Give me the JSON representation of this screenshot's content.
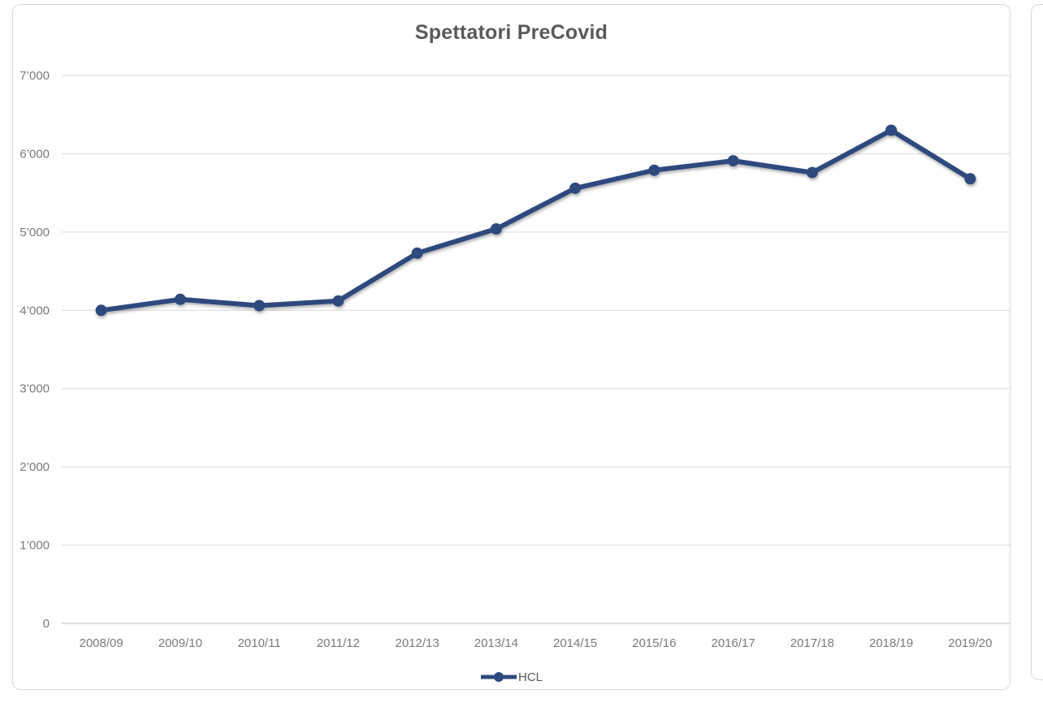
{
  "chart_data": {
    "type": "line",
    "title": "Spettatori PreCovid",
    "categories": [
      "2008/09",
      "2009/10",
      "2010/11",
      "2011/12",
      "2012/13",
      "2013/14",
      "2014/15",
      "2015/16",
      "2016/17",
      "2017/18",
      "2018/19",
      "2019/20"
    ],
    "series": [
      {
        "name": "HCL",
        "color": "#2F4A7D",
        "values": [
          4000,
          4140,
          4060,
          4120,
          4730,
          5040,
          5560,
          5790,
          5910,
          5760,
          6300,
          5680
        ]
      }
    ],
    "xlabel": "",
    "ylabel": "",
    "ylim": [
      0,
      7000
    ],
    "ytick_step": 1000,
    "ytick_labels": [
      "0",
      "1’000",
      "2’000",
      "3’000",
      "4’000",
      "5’000",
      "6’000",
      "7’000"
    ],
    "grid": true,
    "legend_position": "bottom",
    "colors": {
      "title": "#595959",
      "axis_labels": "#7A7A7A",
      "legend_text": "#595959",
      "gridline": "#D9D9D9",
      "axis_line": "#BFBFBF",
      "card_border": "#D9D9D9",
      "background": "#FFFFFF"
    }
  }
}
